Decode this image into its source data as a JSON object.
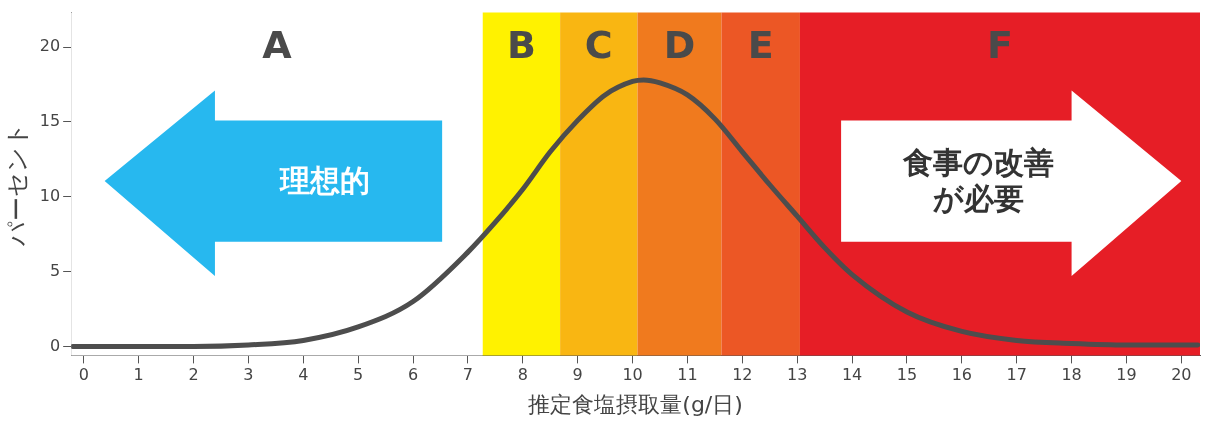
{
  "chart_data": {
    "type": "line",
    "xlabel": "推定食塩摂取量(g/日)",
    "ylabel": "パーセント",
    "x": [
      -0.2,
      0,
      1,
      2,
      3,
      4,
      5,
      6,
      7,
      7.5,
      8,
      8.5,
      9,
      9.5,
      10,
      10.2,
      10.5,
      11,
      11.5,
      12,
      12.5,
      13,
      13.5,
      14,
      15,
      16,
      17,
      18,
      19,
      20,
      20.3
    ],
    "series": [
      {
        "color": "#4d4d4d",
        "values": [
          0,
          0,
          0,
          0,
          0.1,
          0.4,
          1.3,
          3.0,
          6.3,
          8.3,
          10.5,
          13.0,
          15.1,
          16.8,
          17.7,
          17.8,
          17.6,
          16.8,
          15.2,
          13.0,
          10.8,
          8.7,
          6.6,
          4.8,
          2.3,
          1.0,
          0.4,
          0.2,
          0.1,
          0.1,
          0.1
        ]
      }
    ],
    "xlim": [
      -0.23,
      20.34
    ],
    "ylim": [
      -0.6,
      22.3
    ],
    "xticks": [
      0,
      1,
      2,
      3,
      4,
      5,
      6,
      7,
      8,
      9,
      10,
      11,
      12,
      13,
      14,
      15,
      16,
      17,
      18,
      19,
      20
    ],
    "yticks": [
      0,
      5,
      10,
      15,
      20
    ],
    "grid": false,
    "legend": false,
    "marker": "none",
    "line_style": "solid",
    "bands": [
      {
        "axis": "x",
        "from": -0.23,
        "to": 7.27,
        "label": "A",
        "color": "#ffffff"
      },
      {
        "axis": "x",
        "from": 7.27,
        "to": 8.68,
        "label": "B",
        "color": "#fff200"
      },
      {
        "axis": "x",
        "from": 8.68,
        "to": 10.09,
        "label": "C",
        "color": "#f9b612"
      },
      {
        "axis": "x",
        "from": 10.09,
        "to": 11.62,
        "label": "D",
        "color": "#f07a1e"
      },
      {
        "axis": "x",
        "from": 11.62,
        "to": 13.05,
        "label": "E",
        "color": "#ec5725"
      },
      {
        "axis": "x",
        "from": 13.05,
        "to": 20.34,
        "label": "F",
        "color": "#e61e26"
      }
    ],
    "annotations": [
      "理想的",
      "食事の改善",
      "が必要"
    ]
  }
}
